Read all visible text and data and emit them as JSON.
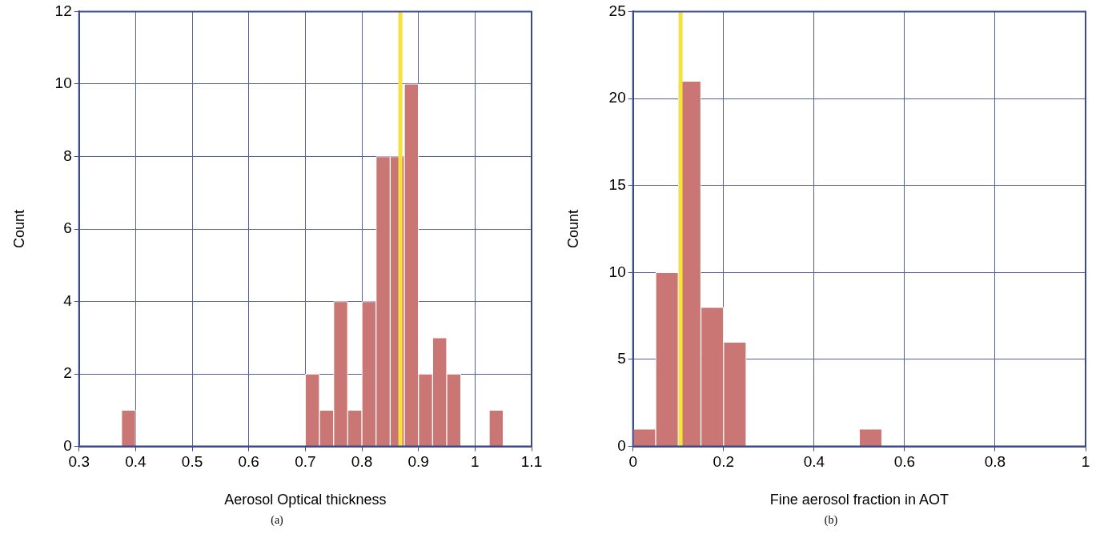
{
  "chart_data": [
    {
      "type": "histogram",
      "xlabel": "Aerosol Optical thickness",
      "ylabel": "Count",
      "bins": [
        0.375,
        0.4,
        0.425,
        0.45,
        0.475,
        0.5,
        0.525,
        0.55,
        0.575,
        0.6,
        0.625,
        0.65,
        0.675,
        0.7,
        0.725,
        0.75,
        0.775,
        0.8,
        0.825,
        0.85,
        0.875,
        0.9,
        0.925,
        0.95,
        0.975,
        1.0,
        1.025,
        1.05
      ],
      "values": [
        1,
        0,
        0,
        0,
        0,
        0,
        0,
        0,
        0,
        0,
        0,
        0,
        0,
        2,
        1,
        4,
        1,
        4,
        8,
        8,
        10,
        2,
        3,
        2,
        0,
        0,
        1
      ],
      "color": "#c97674",
      "xlim": [
        0.3,
        1.1
      ],
      "xticks": [
        0.3,
        0.4,
        0.5,
        0.6,
        0.7,
        0.8,
        0.9,
        1,
        1.1
      ],
      "ylim": [
        0,
        12
      ],
      "yticks": [
        0,
        2,
        4,
        6,
        8,
        10,
        12
      ],
      "grid": true,
      "ref_lines": [
        {
          "axis": "x",
          "value": 0.868,
          "color": "#f5e23a"
        }
      ],
      "annotations": [
        "(a)"
      ]
    },
    {
      "type": "histogram",
      "xlabel": "Fine aerosol fraction in AOT",
      "ylabel": "Count",
      "bins": [
        0,
        0.05,
        0.1,
        0.15,
        0.2,
        0.25,
        0.3,
        0.35,
        0.4,
        0.45,
        0.5,
        0.55
      ],
      "values": [
        1,
        10,
        21,
        8,
        6,
        0,
        0,
        0,
        0,
        0,
        1
      ],
      "color": "#c97674",
      "xlim": [
        0,
        1
      ],
      "xticks": [
        0,
        0.2,
        0.4,
        0.6,
        0.8,
        1
      ],
      "ylim": [
        0,
        25
      ],
      "yticks": [
        0,
        5,
        10,
        15,
        20,
        25
      ],
      "grid": true,
      "ref_lines": [
        {
          "axis": "x",
          "value": 0.105,
          "color": "#f5e23a"
        }
      ],
      "annotations": [
        "(b)"
      ]
    }
  ]
}
